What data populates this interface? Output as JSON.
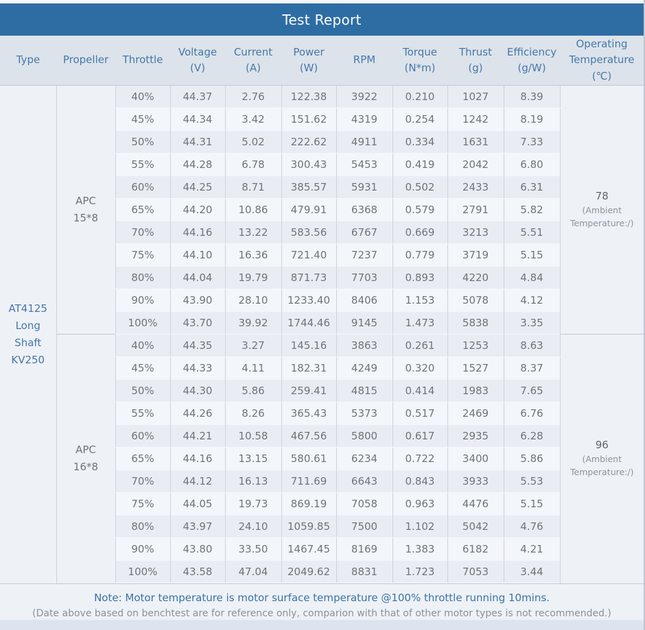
{
  "title": "Test Report",
  "columns": [
    {
      "label": "Type",
      "unit": ""
    },
    {
      "label": "Propeller",
      "unit": ""
    },
    {
      "label": "Throttle",
      "unit": ""
    },
    {
      "label": "Voltage",
      "unit": "(V)"
    },
    {
      "label": "Current",
      "unit": "(A)"
    },
    {
      "label": "Power",
      "unit": "(W)"
    },
    {
      "label": "RPM",
      "unit": ""
    },
    {
      "label": "Torque",
      "unit": "(N*m)"
    },
    {
      "label": "Thrust",
      "unit": "(g)"
    },
    {
      "label": "Efficiency",
      "unit": "(g/W)"
    },
    {
      "label": "Operating Temperature",
      "unit": "(℃)"
    }
  ],
  "type_label": "AT4125\nLong Shaft\nKV250",
  "sections": [
    {
      "propeller": "APC\n15*8",
      "temperature": "78",
      "temperature_note": "(Ambient\nTemperature:/)",
      "rows": [
        [
          "40%",
          "44.37",
          "2.76",
          "122.38",
          "3922",
          "0.210",
          "1027",
          "8.39"
        ],
        [
          "45%",
          "44.34",
          "3.42",
          "151.62",
          "4319",
          "0.254",
          "1242",
          "8.19"
        ],
        [
          "50%",
          "44.31",
          "5.02",
          "222.62",
          "4911",
          "0.334",
          "1631",
          "7.33"
        ],
        [
          "55%",
          "44.28",
          "6.78",
          "300.43",
          "5453",
          "0.419",
          "2042",
          "6.80"
        ],
        [
          "60%",
          "44.25",
          "8.71",
          "385.57",
          "5931",
          "0.502",
          "2433",
          "6.31"
        ],
        [
          "65%",
          "44.20",
          "10.86",
          "479.91",
          "6368",
          "0.579",
          "2791",
          "5.82"
        ],
        [
          "70%",
          "44.16",
          "13.22",
          "583.56",
          "6767",
          "0.669",
          "3213",
          "5.51"
        ],
        [
          "75%",
          "44.10",
          "16.36",
          "721.40",
          "7237",
          "0.779",
          "3719",
          "5.15"
        ],
        [
          "80%",
          "44.04",
          "19.79",
          "871.73",
          "7703",
          "0.893",
          "4220",
          "4.84"
        ],
        [
          "90%",
          "43.90",
          "28.10",
          "1233.40",
          "8406",
          "1.153",
          "5078",
          "4.12"
        ],
        [
          "100%",
          "43.70",
          "39.92",
          "1744.46",
          "9145",
          "1.473",
          "5838",
          "3.35"
        ]
      ]
    },
    {
      "propeller": "APC\n16*8",
      "temperature": "96",
      "temperature_note": "(Ambient\nTemperature:/)",
      "rows": [
        [
          "40%",
          "44.35",
          "3.27",
          "145.16",
          "3863",
          "0.261",
          "1253",
          "8.63"
        ],
        [
          "45%",
          "44.33",
          "4.11",
          "182.31",
          "4249",
          "0.320",
          "1527",
          "8.37"
        ],
        [
          "50%",
          "44.30",
          "5.86",
          "259.41",
          "4815",
          "0.414",
          "1983",
          "7.65"
        ],
        [
          "55%",
          "44.26",
          "8.26",
          "365.43",
          "5373",
          "0.517",
          "2469",
          "6.76"
        ],
        [
          "60%",
          "44.21",
          "10.58",
          "467.56",
          "5800",
          "0.617",
          "2935",
          "6.28"
        ],
        [
          "65%",
          "44.16",
          "13.15",
          "580.61",
          "6234",
          "0.722",
          "3400",
          "5.86"
        ],
        [
          "70%",
          "44.12",
          "16.13",
          "711.69",
          "6643",
          "0.843",
          "3933",
          "5.53"
        ],
        [
          "75%",
          "44.05",
          "19.73",
          "869.19",
          "7058",
          "0.963",
          "4476",
          "5.15"
        ],
        [
          "80%",
          "43.97",
          "24.10",
          "1059.85",
          "7500",
          "1.102",
          "5042",
          "4.76"
        ],
        [
          "90%",
          "43.80",
          "33.50",
          "1467.45",
          "8169",
          "1.383",
          "6182",
          "4.21"
        ],
        [
          "100%",
          "43.58",
          "47.04",
          "2049.62",
          "8831",
          "1.723",
          "7053",
          "3.44"
        ]
      ]
    }
  ],
  "note": {
    "line1": "Note: Motor temperature is motor surface temperature @100% throttle running 10mins.",
    "line2": "(Date above based on benchtest are for reference only, comparion with that of other motor types is not recommended.)"
  }
}
